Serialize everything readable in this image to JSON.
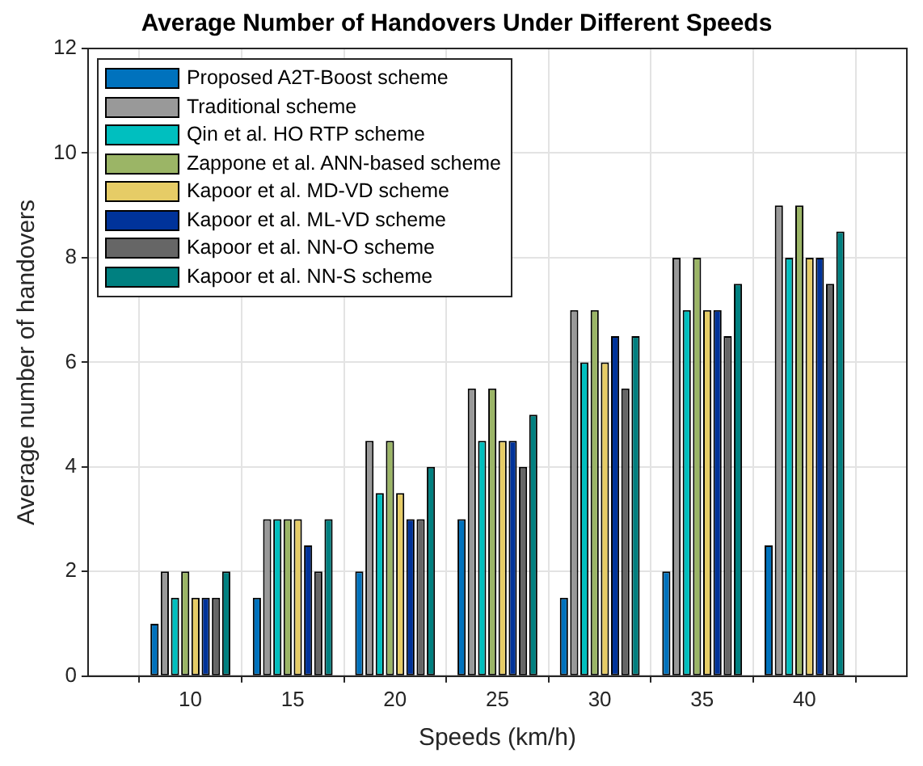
{
  "chart_data": {
    "type": "bar",
    "title": "Average Number of Handovers Under Different Speeds",
    "xlabel": "Speeds (km/h)",
    "ylabel": "Average number of handovers",
    "x": [
      10,
      15,
      20,
      25,
      30,
      35,
      40
    ],
    "xlim": [
      5,
      45
    ],
    "xticks": [
      10,
      15,
      20,
      25,
      30,
      35,
      40
    ],
    "ylim": [
      0,
      12
    ],
    "yticks": [
      0,
      2,
      4,
      6,
      8,
      10,
      12
    ],
    "grid": true,
    "legend": "top left",
    "series": [
      {
        "name": "Proposed A2T-Boost scheme",
        "color": "#0072bd",
        "values": [
          1,
          1.5,
          2,
          3,
          1.5,
          2,
          2.5
        ]
      },
      {
        "name": "Traditional scheme",
        "color": "#999999",
        "values": [
          2,
          3,
          4.5,
          5.5,
          7,
          8,
          9
        ]
      },
      {
        "name": "Qin et al. HO RTP scheme",
        "color": "#00bfbf",
        "values": [
          1.5,
          3,
          3.5,
          4.5,
          6,
          7,
          8
        ]
      },
      {
        "name": "Zappone et al. ANN-based scheme",
        "color": "#9bb566",
        "values": [
          2,
          3,
          4.5,
          5.5,
          7,
          8,
          9
        ]
      },
      {
        "name": "Kapoor et al. MD-VD scheme",
        "color": "#e6cc66",
        "values": [
          1.5,
          3,
          3.5,
          4.5,
          6,
          7,
          8
        ]
      },
      {
        "name": "Kapoor et al. ML-VD scheme",
        "color": "#00339a",
        "values": [
          1.5,
          2.5,
          3,
          4.5,
          6.5,
          7,
          8
        ]
      },
      {
        "name": "Kapoor et al. NN-O scheme",
        "color": "#666666",
        "values": [
          1.5,
          2,
          3,
          4,
          5.5,
          6.5,
          7.5
        ]
      },
      {
        "name": "Kapoor et al. NN-S scheme",
        "color": "#008080",
        "values": [
          2,
          3,
          4,
          5,
          6.5,
          7.5,
          8.5
        ]
      }
    ]
  }
}
